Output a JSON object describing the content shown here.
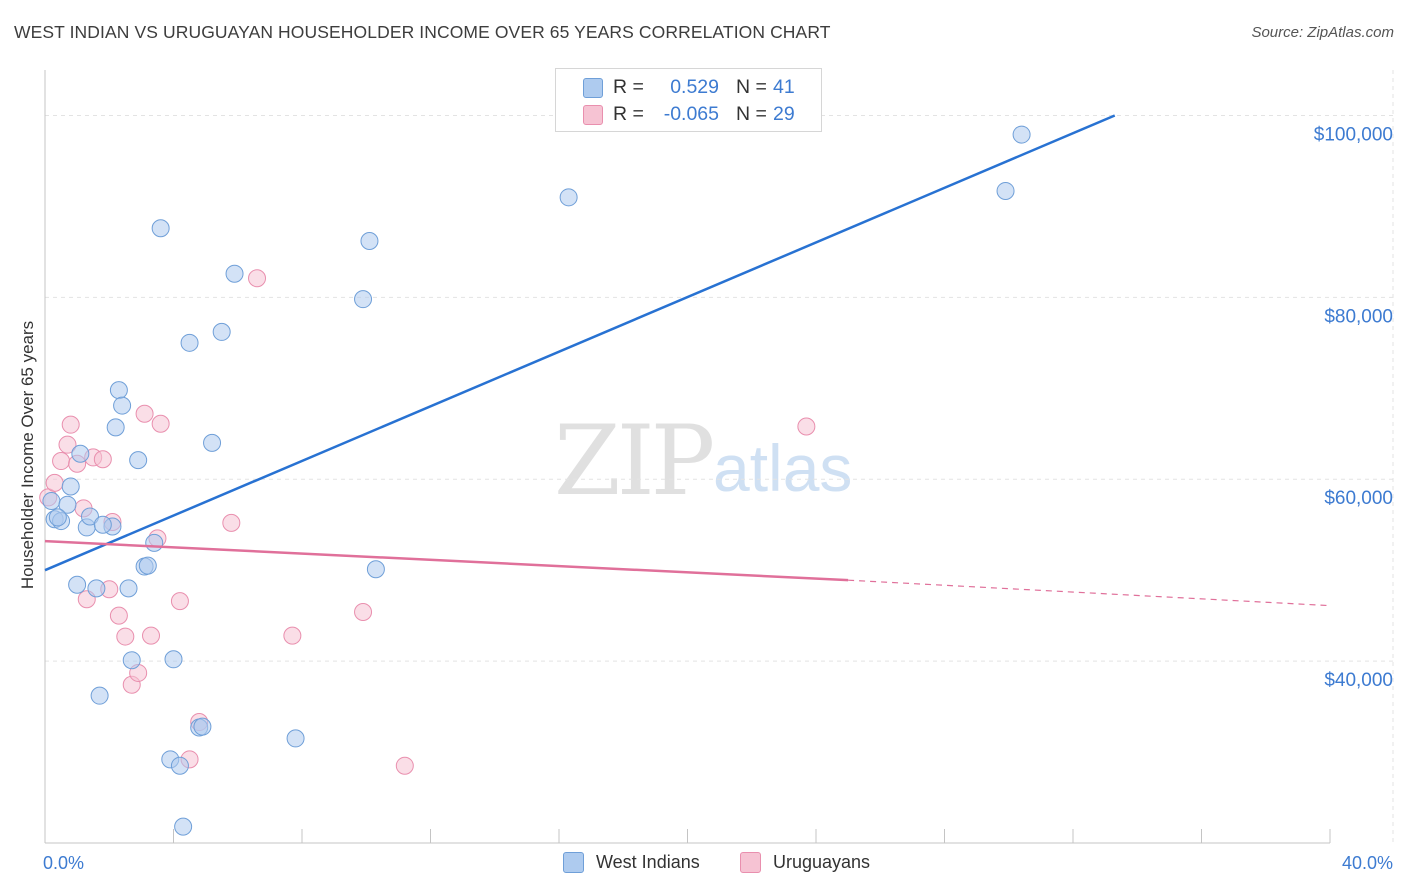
{
  "header": {
    "title": "WEST INDIAN VS URUGUAYAN HOUSEHOLDER INCOME OVER 65 YEARS CORRELATION CHART",
    "source": "Source: ZipAtlas.com"
  },
  "watermark": {
    "zip": "ZIP",
    "atlas": "atlas"
  },
  "legend": {
    "series": [
      {
        "r_label": "R =",
        "r_value": "0.529",
        "n_label": "N =",
        "n_value": "41"
      },
      {
        "r_label": "R =",
        "r_value": "-0.065",
        "n_label": "N =",
        "n_value": "29"
      }
    ]
  },
  "chart_data": {
    "type": "scatter",
    "title": "WEST INDIAN VS URUGUAYAN HOUSEHOLDER INCOME OVER 65 YEARS CORRELATION CHART",
    "xlabel": "",
    "ylabel": "Householder Income Over 65 years",
    "xlim": [
      0,
      40
    ],
    "ylim": [
      20000,
      105000
    ],
    "x_tick_labels": [
      "0.0%",
      "40.0%"
    ],
    "y_ticks": [
      {
        "value": 100000,
        "label": "$100,000"
      },
      {
        "value": 80000,
        "label": "$80,000"
      },
      {
        "value": 60000,
        "label": "$60,000"
      },
      {
        "value": 40000,
        "label": "$40,000"
      }
    ],
    "grid": true,
    "colors": {
      "blue_fill": "#aecbef",
      "blue_stroke": "#6f9fd8",
      "blue_line": "#2872d2",
      "pink_fill": "#f6c3d3",
      "pink_stroke": "#e98fae",
      "pink_line": "#e0709a"
    },
    "series": [
      {
        "name": "West Indians",
        "points": [
          [
            0.2,
            57.6
          ],
          [
            0.3,
            55.6
          ],
          [
            0.5,
            55.4
          ],
          [
            0.7,
            57.2
          ],
          [
            0.8,
            59.2
          ],
          [
            1.1,
            62.8
          ],
          [
            1.0,
            48.4
          ],
          [
            1.3,
            54.7
          ],
          [
            1.4,
            55.9
          ],
          [
            1.6,
            48.0
          ],
          [
            1.7,
            36.2
          ],
          [
            2.1,
            54.8
          ],
          [
            2.2,
            65.7
          ],
          [
            2.3,
            69.8
          ],
          [
            2.4,
            68.1
          ],
          [
            2.6,
            48.0
          ],
          [
            2.7,
            40.1
          ],
          [
            2.9,
            62.1
          ],
          [
            3.1,
            50.4
          ],
          [
            3.2,
            50.5
          ],
          [
            3.4,
            53.0
          ],
          [
            3.6,
            87.6
          ],
          [
            3.9,
            29.2
          ],
          [
            4.0,
            40.2
          ],
          [
            4.2,
            28.5
          ],
          [
            4.3,
            21.8
          ],
          [
            4.5,
            75.0
          ],
          [
            4.8,
            32.7
          ],
          [
            4.9,
            32.8
          ],
          [
            5.2,
            64.0
          ],
          [
            5.5,
            76.2
          ],
          [
            5.9,
            82.6
          ],
          [
            7.8,
            31.5
          ],
          [
            9.9,
            79.8
          ],
          [
            10.1,
            86.2
          ],
          [
            10.3,
            50.1
          ],
          [
            16.3,
            91.0
          ],
          [
            29.9,
            91.7
          ],
          [
            30.4,
            97.9
          ],
          [
            1.8,
            55.0
          ],
          [
            0.4,
            55.8
          ]
        ],
        "trend": {
          "x": [
            0,
            33.3
          ],
          "y": [
            50.0,
            100.0
          ]
        }
      },
      {
        "name": "Uruguayans",
        "points": [
          [
            0.1,
            58.0
          ],
          [
            0.3,
            59.6
          ],
          [
            0.5,
            62.0
          ],
          [
            0.7,
            63.8
          ],
          [
            0.8,
            66.0
          ],
          [
            1.0,
            61.7
          ],
          [
            1.2,
            56.8
          ],
          [
            1.3,
            46.8
          ],
          [
            1.5,
            62.4
          ],
          [
            1.8,
            62.2
          ],
          [
            2.0,
            47.9
          ],
          [
            2.1,
            55.3
          ],
          [
            2.3,
            45.0
          ],
          [
            2.5,
            42.7
          ],
          [
            2.7,
            37.4
          ],
          [
            2.9,
            38.7
          ],
          [
            3.1,
            67.2
          ],
          [
            3.3,
            42.8
          ],
          [
            3.5,
            53.5
          ],
          [
            3.6,
            66.1
          ],
          [
            4.2,
            46.6
          ],
          [
            4.5,
            29.2
          ],
          [
            4.8,
            33.3
          ],
          [
            5.8,
            55.2
          ],
          [
            6.6,
            82.1
          ],
          [
            7.7,
            42.8
          ],
          [
            9.9,
            45.4
          ],
          [
            11.2,
            28.5
          ],
          [
            23.7,
            65.8
          ]
        ],
        "trend": {
          "x": [
            0,
            25.0
          ],
          "y": [
            53.2,
            48.9
          ]
        },
        "trend_dashed": {
          "x": [
            25.0,
            40.0
          ],
          "y": [
            48.9,
            46.1
          ]
        }
      }
    ]
  },
  "bottom_legend": {
    "west_indians": "West Indians",
    "uruguayans": "Uruguayans"
  }
}
